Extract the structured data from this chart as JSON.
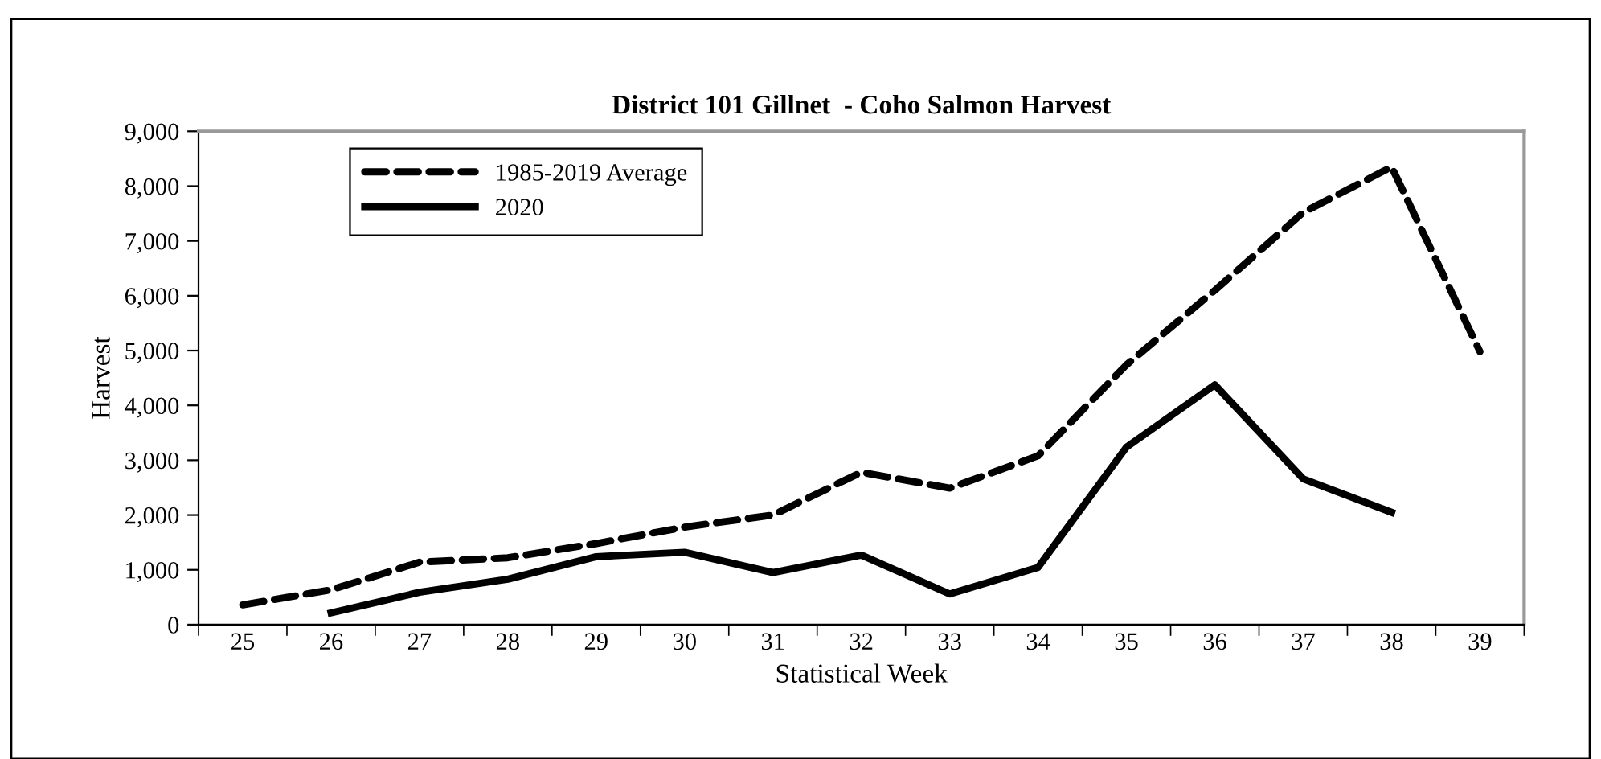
{
  "chart_data": {
    "type": "line",
    "title": "District 101 Gillnet  - Coho Salmon Harvest",
    "xlabel": "Statistical Week",
    "ylabel": "Harvest",
    "categories": [
      "25",
      "26",
      "27",
      "28",
      "29",
      "30",
      "31",
      "32",
      "33",
      "34",
      "35",
      "36",
      "37",
      "38",
      "39"
    ],
    "series": [
      {
        "name": "1985-2019 Average",
        "color": "#000000",
        "line_style": "dashed",
        "values": [
          360,
          635,
          1140,
          1220,
          1480,
          1780,
          2000,
          2780,
          2490,
          3080,
          4740,
          6100,
          7520,
          8350,
          4980
        ]
      },
      {
        "name": "2020",
        "color": "#000000",
        "line_style": "solid",
        "values": [
          null,
          215,
          590,
          830,
          1240,
          1320,
          950,
          1270,
          560,
          1045,
          3240,
          4375,
          2660,
          2050,
          null
        ]
      }
    ],
    "ylim": [
      0,
      9000
    ],
    "yticks": [
      0,
      {
        "value": 1000,
        "label": "1,000"
      },
      {
        "value": 2000,
        "label": "2,000"
      },
      {
        "value": 3000,
        "label": "3,000"
      },
      {
        "value": 4000,
        "label": "4,000"
      },
      {
        "value": 5000,
        "label": "5,000"
      },
      {
        "value": 6000,
        "label": "6,000"
      },
      {
        "value": 7000,
        "label": "7,000"
      },
      {
        "value": 8000,
        "label": "8,000"
      },
      {
        "value": 9000,
        "label": "9,000"
      }
    ],
    "grid": false,
    "legend": "top left",
    "marker": "none"
  }
}
